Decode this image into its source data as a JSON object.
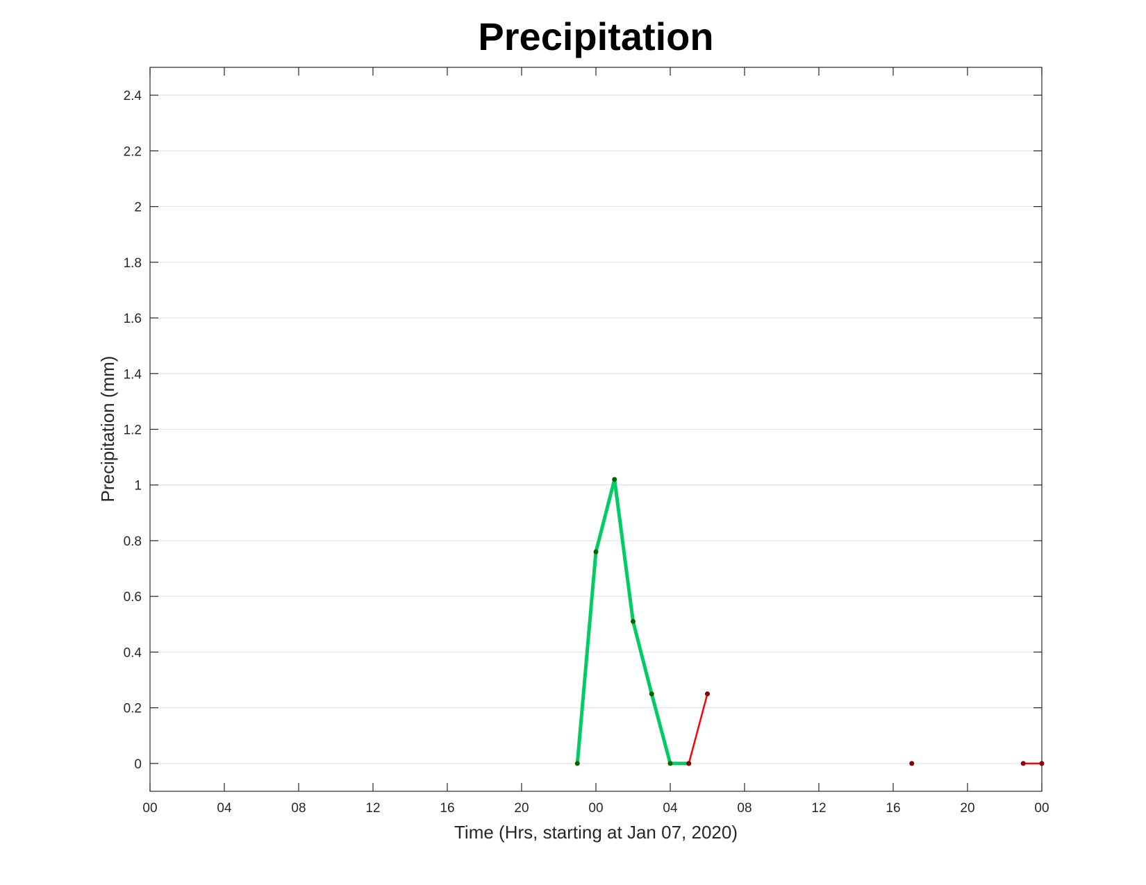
{
  "chart_data": {
    "type": "line",
    "title": "Precipitation",
    "x_label": "Time (Hrs, starting at Jan 07, 2020)",
    "y_label": "Precipitation (mm)",
    "series": [
      {
        "color": "#00cc66",
        "marker_color": "#006400",
        "x": [
          23,
          24,
          25,
          26,
          27,
          28,
          29
        ],
        "values": [
          0,
          0.76,
          1.02,
          0.51,
          0.25,
          0,
          0
        ]
      },
      {
        "color": "#ff0000",
        "marker_color": "#8b0000",
        "x": [
          29,
          30,
          null,
          41,
          null,
          47,
          48
        ],
        "values": [
          0,
          0.25,
          null,
          0,
          null,
          0,
          0
        ]
      }
    ],
    "xlim": [
      0,
      48
    ],
    "xticks": [
      {
        "value": 0,
        "label": "00"
      },
      {
        "value": 4,
        "label": "04"
      },
      {
        "value": 8,
        "label": "08"
      },
      {
        "value": 12,
        "label": "12"
      },
      {
        "value": 16,
        "label": "16"
      },
      {
        "value": 20,
        "label": "20"
      },
      {
        "value": 24,
        "label": "00"
      },
      {
        "value": 28,
        "label": "04"
      },
      {
        "value": 32,
        "label": "08"
      },
      {
        "value": 36,
        "label": "12"
      },
      {
        "value": 40,
        "label": "16"
      },
      {
        "value": 44,
        "label": "20"
      },
      {
        "value": 48,
        "label": "00"
      }
    ],
    "ylim": [
      -0.1,
      2.5
    ],
    "yticks": [
      0,
      0.2,
      0.4,
      0.6,
      0.8,
      1,
      1.2,
      1.4,
      1.6,
      1.8,
      2,
      2.2,
      2.4
    ],
    "grid": true
  }
}
